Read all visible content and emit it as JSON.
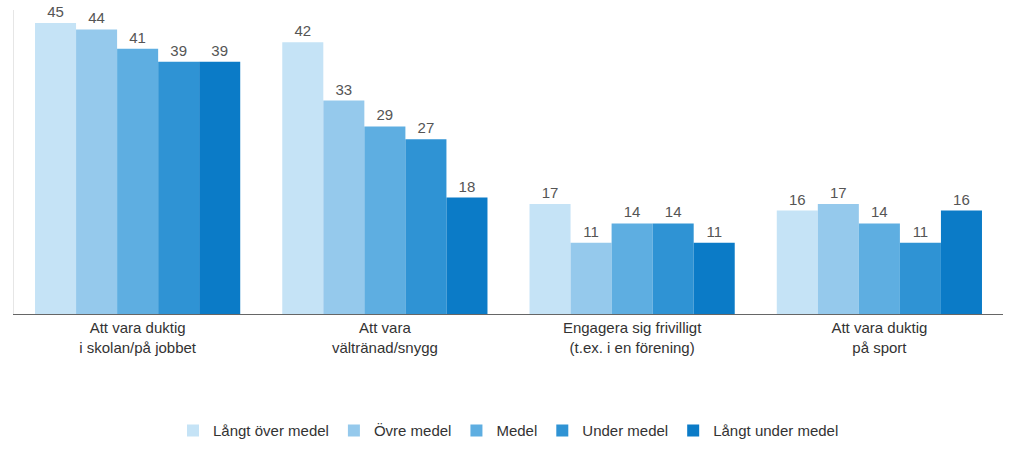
{
  "chart_data": {
    "type": "bar",
    "categories": [
      "Att vara duktig\ni skolan/på jobbet",
      "Att vara\nvältränad/snygg",
      "Engagera sig frivilligt\n(t.ex. i en förening)",
      "Att vara duktig\npå sport"
    ],
    "series": [
      {
        "name": "Långt över medel",
        "color": "#c5e3f6",
        "values": [
          45,
          42,
          17,
          16
        ]
      },
      {
        "name": "Övre medel",
        "color": "#95c9ec",
        "values": [
          44,
          33,
          11,
          17
        ]
      },
      {
        "name": "Medel",
        "color": "#5eaee1",
        "values": [
          41,
          29,
          14,
          14
        ]
      },
      {
        "name": "Under medel",
        "color": "#2f93d4",
        "values": [
          39,
          27,
          14,
          11
        ]
      },
      {
        "name": "Långt under medel",
        "color": "#0b7bc7",
        "values": [
          39,
          18,
          11,
          16
        ]
      }
    ],
    "ylim": [
      0,
      47
    ],
    "yticks": [],
    "grid": false,
    "legend": "bottom",
    "data_labels": true,
    "tick_labels": "x"
  }
}
